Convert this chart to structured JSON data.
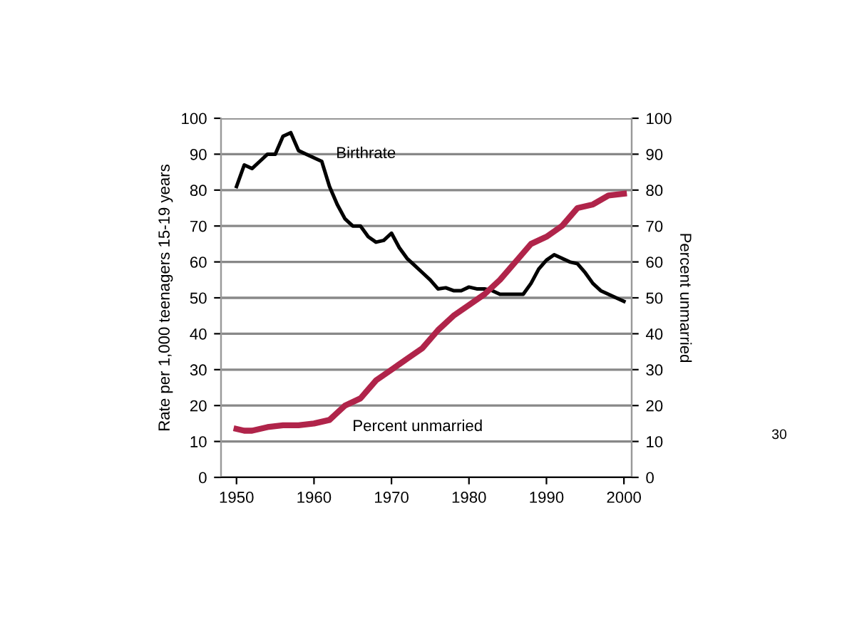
{
  "chart_data": {
    "type": "line",
    "ylabel": "Rate per 1,000 teenagers 15-19 years",
    "y2label": "Percent unmarried",
    "xlim": [
      1948,
      2001
    ],
    "xticks": [
      1950,
      1960,
      1970,
      1980,
      1990,
      2000
    ],
    "ylim": [
      0,
      100
    ],
    "yticks": [
      0,
      10,
      20,
      30,
      40,
      50,
      60,
      70,
      80,
      90,
      100
    ],
    "y2lim": [
      0,
      100
    ],
    "y2ticks": [
      0,
      10,
      20,
      30,
      40,
      50,
      60,
      70,
      80,
      90,
      100
    ],
    "grid": "y",
    "legend": false,
    "line_style": "solid",
    "marker": "none",
    "series": [
      {
        "name": "Birthrate",
        "color": "#000000",
        "x": [
          1950,
          1951,
          1952,
          1953,
          1954,
          1955,
          1956,
          1957,
          1958,
          1959,
          1960,
          1961,
          1962,
          1963,
          1964,
          1965,
          1966,
          1967,
          1968,
          1969,
          1970,
          1971,
          1972,
          1973,
          1974,
          1975,
          1976,
          1977,
          1978,
          1979,
          1980,
          1981,
          1982,
          1983,
          1984,
          1985,
          1986,
          1987,
          1988,
          1989,
          1990,
          1991,
          1992,
          1993,
          1994,
          1995,
          1996,
          1997,
          1998,
          1999,
          2000
        ],
        "values": [
          81,
          87,
          86,
          88,
          90,
          90,
          95,
          96,
          91,
          90,
          89,
          88,
          81,
          76,
          72,
          70,
          70,
          67,
          65.5,
          66,
          68,
          64,
          61,
          59,
          57,
          55,
          52.5,
          52.8,
          52,
          52,
          53,
          52.5,
          52.5,
          52,
          51,
          51,
          51,
          51,
          54,
          58,
          60.5,
          62,
          61,
          60,
          59.5,
          57,
          54,
          52,
          51,
          50,
          49
        ]
      },
      {
        "name": "Percent unmarried",
        "color": "#b0244a",
        "x": [
          1950,
          1951,
          1952,
          1954,
          1956,
          1958,
          1960,
          1961,
          1962,
          1963,
          1964,
          1966,
          1968,
          1970,
          1972,
          1974,
          1976,
          1978,
          1980,
          1982,
          1984,
          1986,
          1988,
          1990,
          1992,
          1994,
          1996,
          1998,
          2000
        ],
        "values": [
          13.5,
          13,
          13,
          14,
          14.5,
          14.5,
          15,
          15.5,
          16,
          18,
          20,
          22,
          27,
          30,
          33,
          36,
          41,
          45,
          48,
          51,
          55,
          60,
          65,
          67,
          70,
          75,
          76,
          78.5,
          79
        ]
      }
    ],
    "annotations": [
      "30"
    ]
  }
}
